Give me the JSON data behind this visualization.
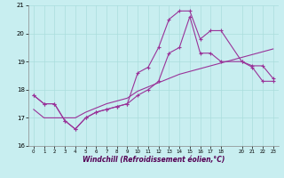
{
  "xlabel": "Windchill (Refroidissement éolien,°C)",
  "bg_color": "#c8eef0",
  "grid_color": "#aadddd",
  "line_color": "#993399",
  "xlim": [
    -0.5,
    23.5
  ],
  "ylim": [
    16,
    21
  ],
  "yticks": [
    16,
    17,
    18,
    19,
    20,
    21
  ],
  "xticks": [
    0,
    1,
    2,
    3,
    4,
    5,
    6,
    7,
    8,
    9,
    10,
    11,
    12,
    13,
    14,
    15,
    16,
    17,
    18,
    20,
    21,
    22,
    23
  ],
  "hours": [
    0,
    1,
    2,
    3,
    4,
    5,
    6,
    7,
    8,
    9,
    10,
    11,
    12,
    13,
    14,
    15,
    16,
    17,
    18,
    20,
    21,
    22,
    23
  ],
  "line_upper": [
    17.8,
    17.5,
    17.5,
    16.9,
    16.6,
    17.0,
    17.2,
    17.3,
    17.4,
    17.5,
    18.6,
    18.8,
    19.5,
    20.5,
    20.8,
    20.8,
    19.8,
    20.1,
    20.1,
    19.0,
    18.85,
    18.85,
    18.4
  ],
  "line_mid": [
    17.8,
    17.5,
    17.5,
    16.9,
    16.6,
    17.0,
    17.2,
    17.3,
    17.4,
    17.5,
    17.8,
    18.0,
    18.3,
    19.3,
    19.5,
    20.6,
    19.3,
    19.3,
    19.0,
    19.0,
    18.8,
    18.3,
    18.3
  ],
  "line_lower": [
    17.3,
    17.0,
    17.0,
    17.0,
    17.0,
    17.2,
    17.35,
    17.5,
    17.6,
    17.7,
    17.95,
    18.1,
    18.25,
    18.4,
    18.55,
    18.65,
    18.75,
    18.85,
    18.95,
    19.15,
    19.25,
    19.35,
    19.45
  ]
}
